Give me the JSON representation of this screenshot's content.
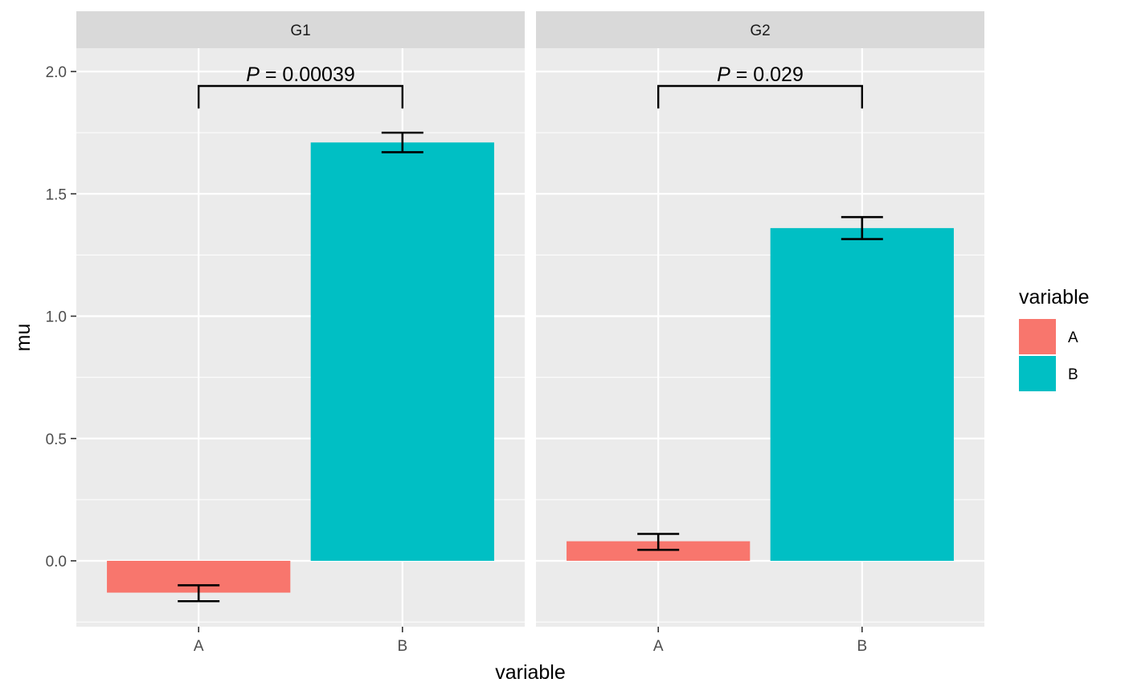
{
  "chart_data": {
    "type": "bar",
    "xlabel": "variable",
    "ylabel": "mu",
    "ylim": [
      -0.26,
      2.1
    ],
    "yticks": [
      0.0,
      0.5,
      1.0,
      1.5,
      2.0
    ],
    "ytick_labels": [
      "0.0",
      "0.5",
      "1.0",
      "1.5",
      "2.0"
    ],
    "categories": [
      "A",
      "B"
    ],
    "grid": true,
    "legend": {
      "title": "variable",
      "position": "right",
      "items": [
        {
          "label": "A",
          "color": "#F8766D"
        },
        {
          "label": "B",
          "color": "#00BFC4"
        }
      ]
    },
    "panels": [
      {
        "name": "G1",
        "bars": [
          {
            "category": "A",
            "value": -0.13,
            "err_low": -0.165,
            "err_high": -0.1
          },
          {
            "category": "B",
            "value": 1.71,
            "err_low": 1.67,
            "err_high": 1.75
          }
        ],
        "annotation": {
          "p_label": "P",
          "p_value": " = 0.00039"
        }
      },
      {
        "name": "G2",
        "bars": [
          {
            "category": "A",
            "value": 0.08,
            "err_low": 0.045,
            "err_high": 0.11
          },
          {
            "category": "B",
            "value": 1.36,
            "err_low": 1.315,
            "err_high": 1.405
          }
        ],
        "annotation": {
          "p_label": "P",
          "p_value": " = 0.029"
        }
      }
    ]
  }
}
